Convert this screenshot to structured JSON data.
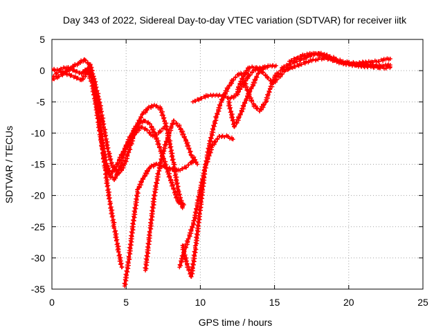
{
  "chart_data": {
    "type": "scatter",
    "title": "Day 343 of 2022, Sidereal Day-to-day VTEC variation (SDTVAR) for receiver iitk",
    "xlabel": "GPS time / hours",
    "ylabel": "SDTVAR / TECUs",
    "xlim": [
      0,
      25
    ],
    "ylim": [
      -35,
      5
    ],
    "x_ticks": [
      0,
      5,
      10,
      15,
      20,
      25
    ],
    "y_ticks": [
      5,
      0,
      -5,
      -10,
      -15,
      -20,
      -25,
      -30,
      -35
    ],
    "grid": true,
    "marker": "+",
    "series_color": "#ff0000",
    "series": [
      {
        "values": [
          [
            0.0,
            -1.5
          ],
          [
            0.4,
            -1.0
          ],
          [
            0.8,
            -0.5
          ],
          [
            1.3,
            0.5
          ],
          [
            1.8,
            1.2
          ],
          [
            2.2,
            1.8
          ],
          [
            2.5,
            1.0
          ],
          [
            2.8,
            -1.0
          ],
          [
            3.2,
            -5.0
          ],
          [
            3.5,
            -9.0
          ],
          [
            3.8,
            -13.0
          ],
          [
            4.1,
            -15.5
          ],
          [
            4.5,
            -16.5
          ],
          [
            4.9,
            -15.0
          ],
          [
            5.3,
            -12.0
          ],
          [
            5.7,
            -9.0
          ],
          [
            6.1,
            -7.0
          ],
          [
            6.5,
            -6.0
          ],
          [
            6.9,
            -5.5
          ],
          [
            7.3,
            -6.0
          ],
          [
            7.6,
            -8.0
          ],
          [
            7.9,
            -11.0
          ],
          [
            8.2,
            -15.0
          ],
          [
            8.5,
            -19.0
          ],
          [
            8.8,
            -22.0
          ]
        ]
      },
      {
        "values": [
          [
            0.0,
            0.2
          ],
          [
            0.5,
            0.0
          ],
          [
            1.0,
            -0.5
          ],
          [
            1.5,
            -1.0
          ],
          [
            2.0,
            -1.5
          ],
          [
            2.3,
            -0.5
          ],
          [
            2.6,
            1.0
          ],
          [
            2.9,
            -3.0
          ],
          [
            3.2,
            -8.0
          ],
          [
            3.5,
            -13.0
          ],
          [
            3.8,
            -16.5
          ],
          [
            4.2,
            -17.5
          ],
          [
            4.6,
            -15.5
          ],
          [
            5.0,
            -12.0
          ],
          [
            5.4,
            -10.0
          ],
          [
            5.8,
            -8.5
          ],
          [
            6.2,
            -8.0
          ],
          [
            6.6,
            -8.5
          ],
          [
            7.0,
            -10.5
          ],
          [
            7.5,
            -14.0
          ],
          [
            8.0,
            -17.5
          ],
          [
            8.5,
            -21.0
          ],
          [
            8.9,
            -21.5
          ]
        ]
      },
      {
        "values": [
          [
            0.0,
            -1.2
          ],
          [
            0.3,
            -0.5
          ],
          [
            0.6,
            0.3
          ],
          [
            1.0,
            0.5
          ],
          [
            1.5,
            0.0
          ],
          [
            2.0,
            -0.5
          ],
          [
            2.4,
            0.3
          ],
          [
            2.7,
            -2.0
          ],
          [
            3.0,
            -6.0
          ],
          [
            3.3,
            -11.0
          ],
          [
            3.6,
            -15.0
          ],
          [
            4.0,
            -16.5
          ],
          [
            4.4,
            -15.0
          ],
          [
            4.8,
            -13.0
          ],
          [
            5.2,
            -11.5
          ],
          [
            5.6,
            -10.0
          ],
          [
            6.0,
            -9.0
          ],
          [
            6.4,
            -9.5
          ],
          [
            6.8,
            -10.5
          ],
          [
            7.2,
            -10.0
          ],
          [
            7.6,
            -9.0
          ]
        ]
      },
      {
        "values": [
          [
            2.5,
            0.5
          ],
          [
            3.0,
            -4.0
          ],
          [
            3.3,
            -10.0
          ],
          [
            3.6,
            -16.0
          ],
          [
            3.9,
            -21.0
          ],
          [
            4.2,
            -25.0
          ],
          [
            4.5,
            -29.0
          ],
          [
            4.7,
            -31.5
          ]
        ]
      },
      {
        "values": [
          [
            4.9,
            -34.5
          ],
          [
            5.2,
            -30.0
          ],
          [
            5.5,
            -24.0
          ],
          [
            5.8,
            -19.0
          ],
          [
            6.2,
            -17.0
          ],
          [
            6.6,
            -15.5
          ],
          [
            7.0,
            -15.0
          ],
          [
            7.5,
            -15.3
          ],
          [
            8.0,
            -15.8
          ],
          [
            8.5,
            -16.0
          ],
          [
            9.0,
            -15.5
          ],
          [
            9.5,
            -14.5
          ]
        ]
      },
      {
        "values": [
          [
            6.3,
            -32.0
          ],
          [
            6.6,
            -26.0
          ],
          [
            6.9,
            -20.0
          ],
          [
            7.2,
            -16.0
          ],
          [
            7.5,
            -13.0
          ],
          [
            7.9,
            -10.0
          ],
          [
            8.2,
            -8.0
          ],
          [
            8.6,
            -9.0
          ],
          [
            9.0,
            -11.0
          ],
          [
            9.4,
            -13.5
          ],
          [
            9.8,
            -15.0
          ]
        ]
      },
      {
        "values": [
          [
            8.6,
            -31.5
          ],
          [
            8.9,
            -29.0
          ],
          [
            9.2,
            -27.0
          ],
          [
            9.6,
            -24.0
          ],
          [
            10.0,
            -19.0
          ],
          [
            10.4,
            -15.0
          ],
          [
            10.8,
            -12.0
          ],
          [
            11.3,
            -10.5
          ],
          [
            11.8,
            -10.5
          ],
          [
            12.2,
            -11.0
          ]
        ]
      },
      {
        "values": [
          [
            8.8,
            -28.0
          ],
          [
            9.1,
            -31.0
          ],
          [
            9.4,
            -33.0
          ],
          [
            9.7,
            -28.0
          ],
          [
            10.0,
            -22.0
          ],
          [
            10.3,
            -16.0
          ],
          [
            10.6,
            -12.0
          ],
          [
            11.0,
            -8.0
          ],
          [
            11.4,
            -5.0
          ],
          [
            11.8,
            -3.0
          ],
          [
            12.2,
            -1.5
          ],
          [
            12.6,
            -0.5
          ],
          [
            13.0,
            -0.5
          ]
        ]
      },
      {
        "values": [
          [
            9.5,
            -5.0
          ],
          [
            10.0,
            -4.5
          ],
          [
            10.5,
            -4.0
          ],
          [
            11.0,
            -4.0
          ],
          [
            11.5,
            -4.0
          ],
          [
            12.0,
            -4.5
          ],
          [
            12.4,
            -4.0
          ],
          [
            12.8,
            -2.5
          ],
          [
            13.2,
            -1.0
          ],
          [
            13.6,
            0.0
          ],
          [
            14.0,
            0.5
          ],
          [
            14.4,
            0.5
          ]
        ]
      },
      {
        "values": [
          [
            11.9,
            -5.0
          ],
          [
            12.3,
            -9.0
          ],
          [
            12.7,
            -7.0
          ],
          [
            13.1,
            -4.5
          ],
          [
            13.5,
            -2.5
          ],
          [
            13.9,
            -0.5
          ],
          [
            14.3,
            0.5
          ],
          [
            14.7,
            0.8
          ],
          [
            15.1,
            0.8
          ]
        ]
      },
      {
        "values": [
          [
            12.5,
            -3.0
          ],
          [
            12.9,
            -1.0
          ],
          [
            13.3,
            0.5
          ],
          [
            13.7,
            0.5
          ],
          [
            14.1,
            0.0
          ],
          [
            14.5,
            -1.0
          ],
          [
            14.9,
            -2.0
          ],
          [
            15.3,
            -1.0
          ],
          [
            15.7,
            0.0
          ],
          [
            16.1,
            0.5
          ]
        ]
      },
      {
        "values": [
          [
            13.0,
            -2.0
          ],
          [
            13.3,
            -4.0
          ],
          [
            13.6,
            -5.5
          ],
          [
            14.0,
            -6.5
          ],
          [
            14.4,
            -5.0
          ],
          [
            14.7,
            -3.0
          ],
          [
            15.0,
            -1.0
          ],
          [
            15.4,
            0.0
          ],
          [
            15.8,
            0.5
          ]
        ]
      },
      {
        "values": [
          [
            15.5,
            0.5
          ],
          [
            16.0,
            1.0
          ],
          [
            16.5,
            1.5
          ],
          [
            17.0,
            2.0
          ],
          [
            17.5,
            2.5
          ],
          [
            18.0,
            2.8
          ],
          [
            18.5,
            2.5
          ],
          [
            19.0,
            2.0
          ],
          [
            19.5,
            1.5
          ],
          [
            20.0,
            1.3
          ],
          [
            20.5,
            1.2
          ],
          [
            21.0,
            1.3
          ],
          [
            21.5,
            1.4
          ],
          [
            22.0,
            1.5
          ],
          [
            22.5,
            1.8
          ],
          [
            22.8,
            1.9
          ]
        ]
      },
      {
        "values": [
          [
            15.8,
            0.2
          ],
          [
            16.3,
            0.6
          ],
          [
            16.8,
            1.0
          ],
          [
            17.3,
            1.5
          ],
          [
            17.8,
            1.8
          ],
          [
            18.3,
            2.0
          ],
          [
            18.8,
            1.8
          ],
          [
            19.3,
            1.5
          ],
          [
            19.8,
            1.2
          ],
          [
            20.3,
            1.0
          ],
          [
            20.8,
            1.0
          ],
          [
            21.3,
            0.9
          ],
          [
            21.8,
            0.8
          ],
          [
            22.3,
            0.8
          ],
          [
            22.8,
            0.9
          ]
        ]
      },
      {
        "values": [
          [
            16.0,
            1.5
          ],
          [
            16.5,
            2.0
          ],
          [
            17.0,
            2.5
          ],
          [
            17.5,
            2.7
          ],
          [
            18.0,
            2.6
          ],
          [
            18.5,
            2.2
          ],
          [
            19.0,
            1.6
          ],
          [
            19.5,
            1.2
          ],
          [
            20.0,
            1.0
          ],
          [
            20.5,
            0.8
          ],
          [
            21.0,
            0.7
          ],
          [
            21.5,
            0.6
          ],
          [
            22.0,
            0.5
          ],
          [
            22.5,
            0.4
          ],
          [
            22.8,
            0.6
          ]
        ]
      }
    ]
  }
}
